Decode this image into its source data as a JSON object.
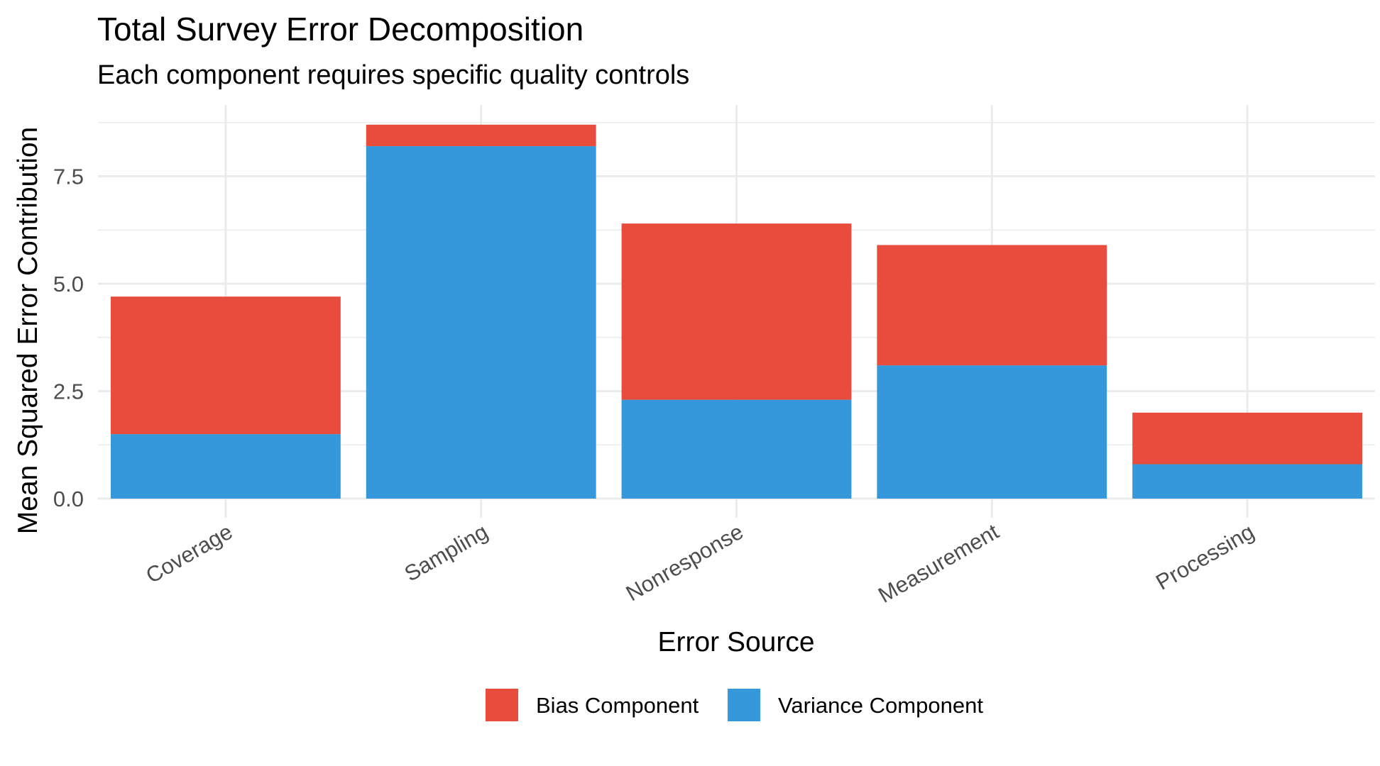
{
  "chart_data": {
    "type": "bar",
    "stacked": true,
    "title": "Total Survey Error Decomposition",
    "subtitle": "Each component requires specific quality controls",
    "xlabel": "Error Source",
    "ylabel": "Mean Squared Error Contribution",
    "categories": [
      "Coverage",
      "Sampling",
      "Nonresponse",
      "Measurement",
      "Processing"
    ],
    "series": [
      {
        "name": "Variance Component",
        "color": "#3498db",
        "values": [
          1.5,
          8.2,
          2.3,
          3.1,
          0.8
        ]
      },
      {
        "name": "Bias Component",
        "color": "#e74c3c",
        "values": [
          3.2,
          0.5,
          4.1,
          2.8,
          1.2
        ]
      }
    ],
    "ylim": [
      0,
      9.2
    ],
    "yticks": [
      0.0,
      2.5,
      5.0,
      7.5
    ],
    "ytick_labels": [
      "0.0",
      "2.5",
      "5.0",
      "7.5"
    ],
    "grid": true,
    "legend": {
      "position": "bottom",
      "entries": [
        {
          "label": "Bias Component",
          "color": "#e74c3c"
        },
        {
          "label": "Variance Component",
          "color": "#3498db"
        }
      ]
    }
  }
}
